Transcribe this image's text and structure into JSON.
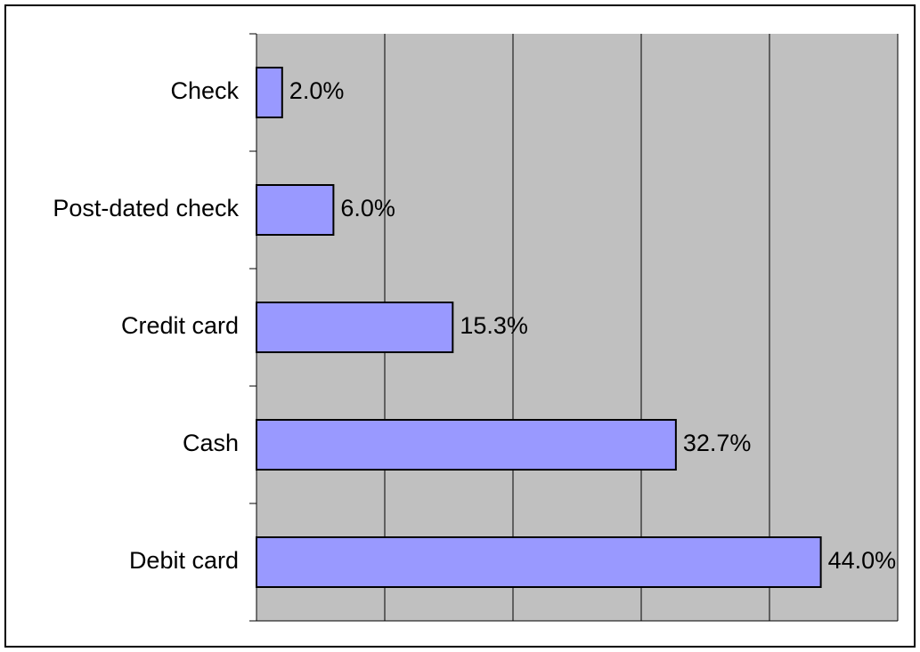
{
  "chart_data": {
    "type": "bar",
    "orientation": "horizontal",
    "categories": [
      "Check",
      "Post-dated check",
      "Credit card",
      "Cash",
      "Debit card"
    ],
    "values": [
      2,
      6,
      15.3,
      32.7,
      44
    ],
    "value_labels": [
      "2.0%",
      "6.0%",
      "15.3%",
      "32.7%",
      "44.0%"
    ],
    "color": "#9999ff",
    "xlim": [
      0,
      50
    ],
    "xticks": [
      0,
      10,
      20,
      30,
      40,
      50
    ],
    "grid": true
  }
}
